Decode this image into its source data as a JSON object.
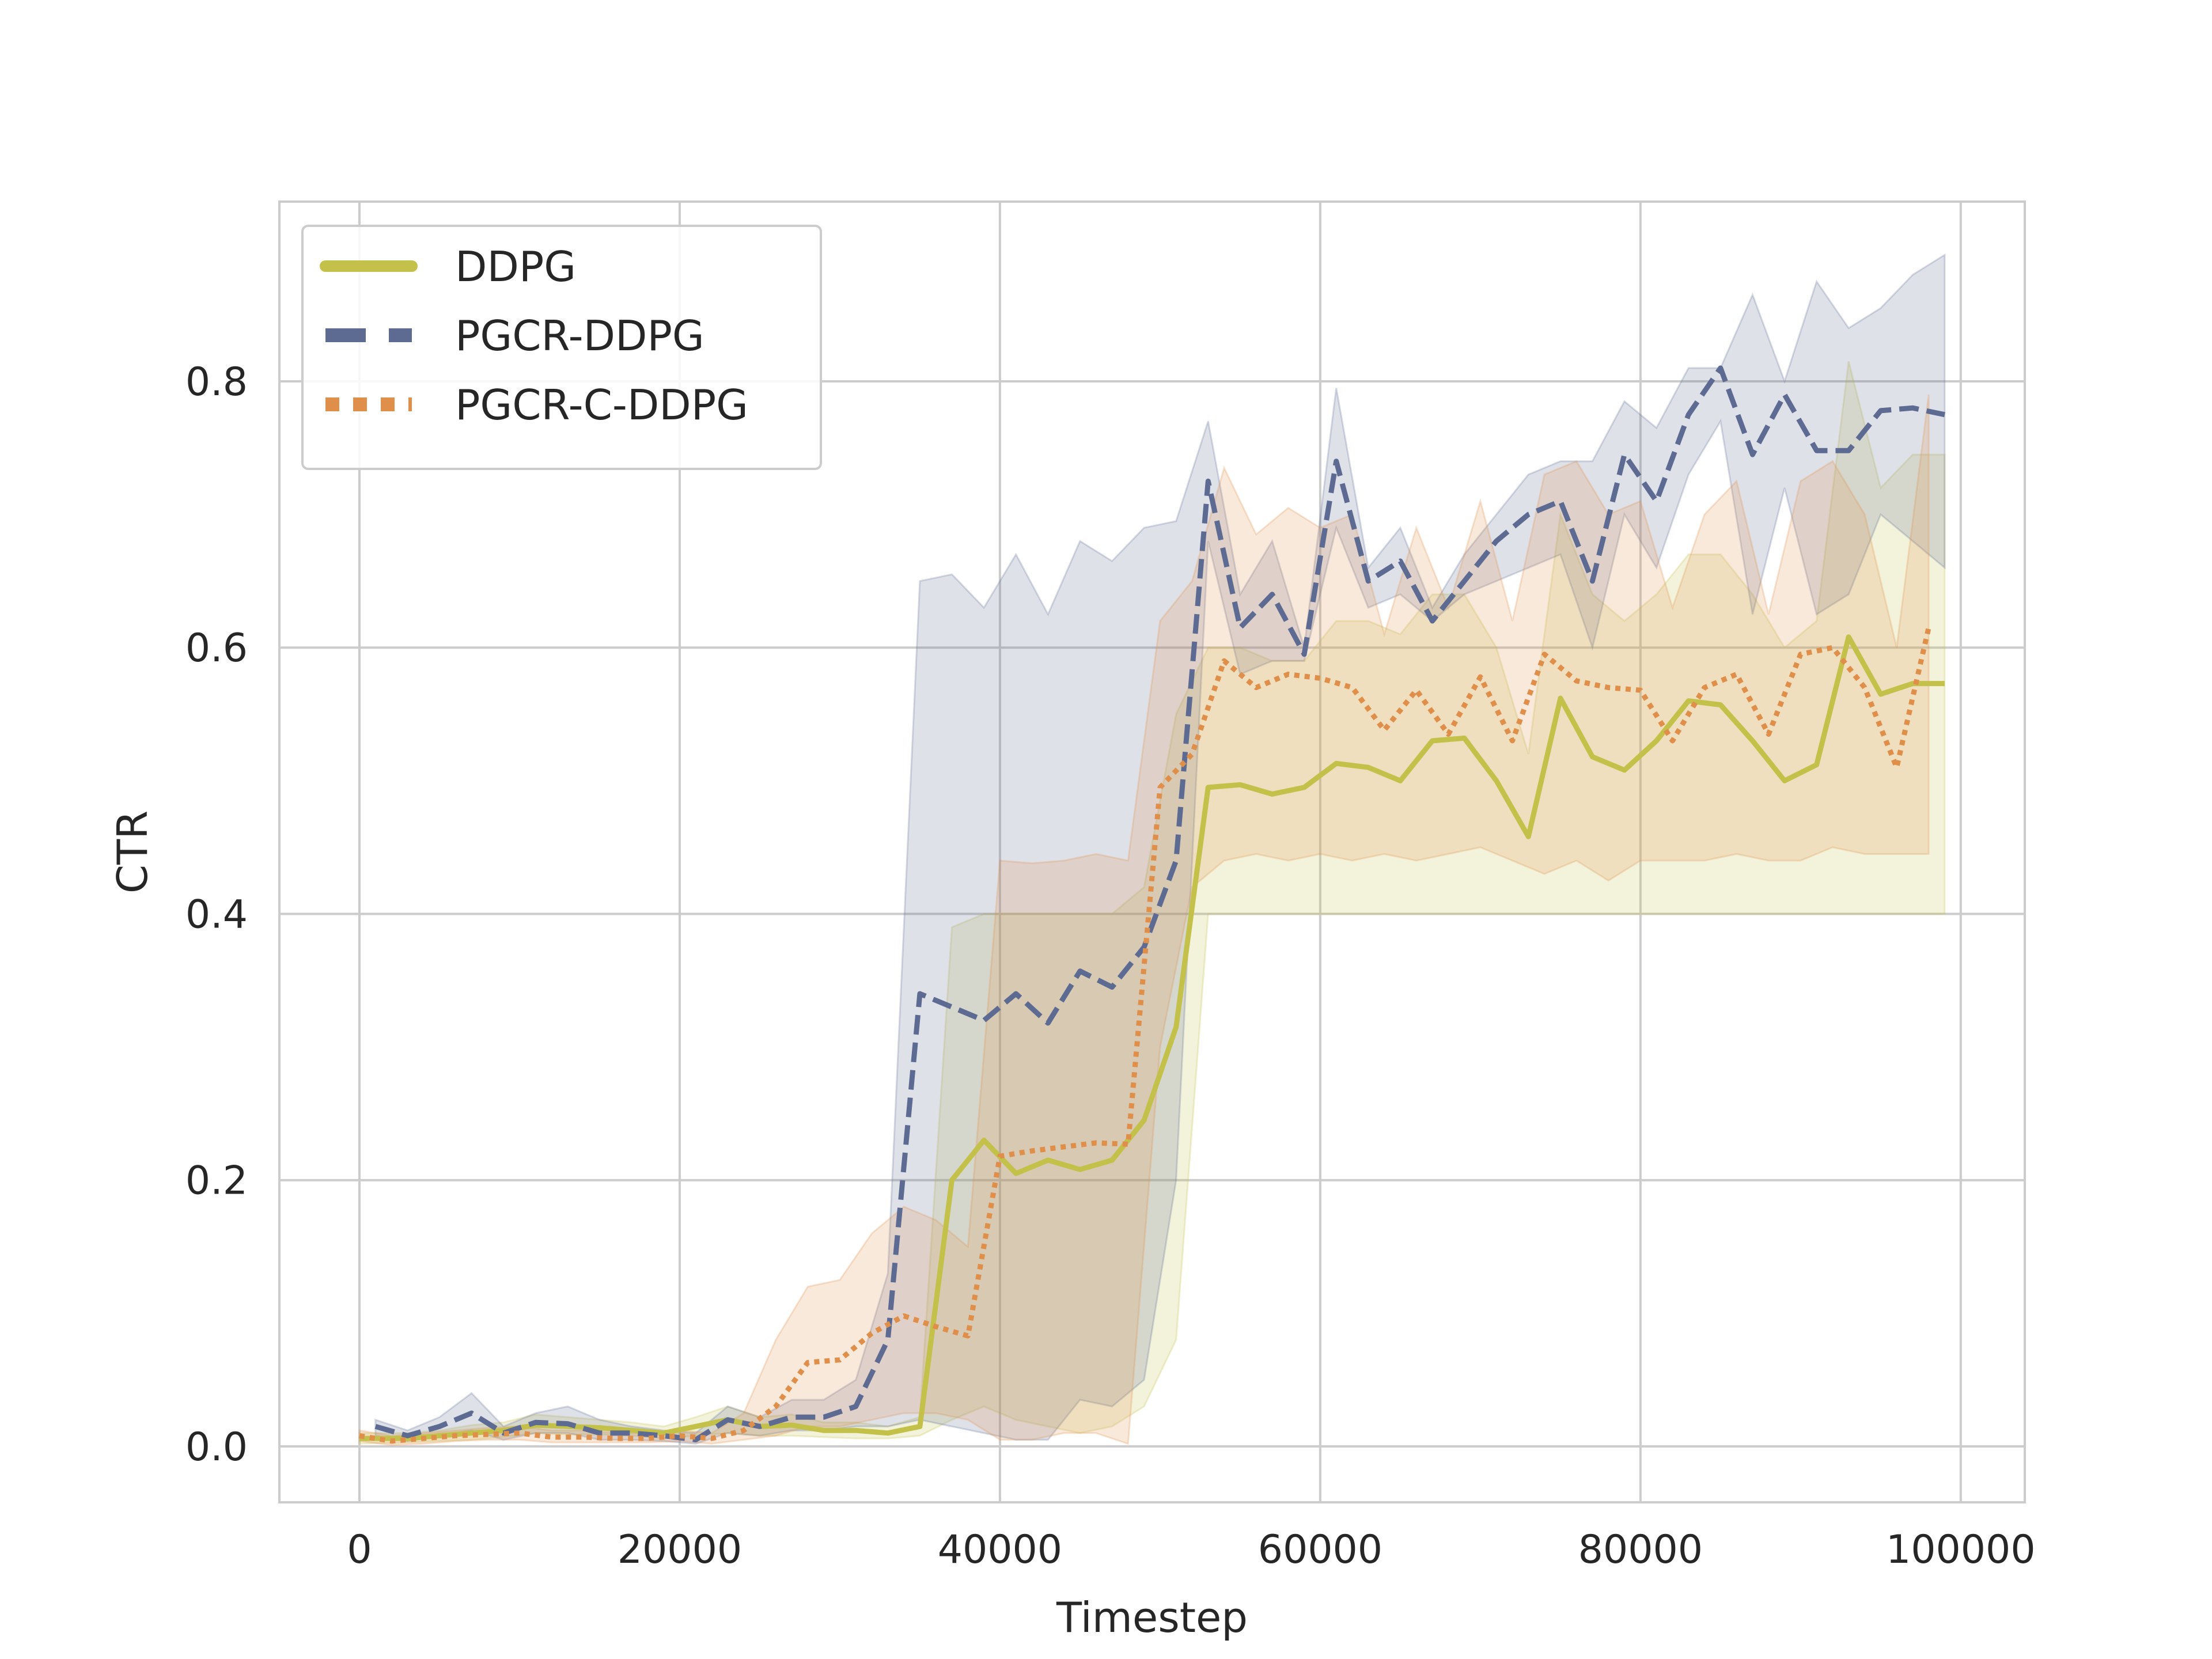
{
  "chart_data": {
    "type": "line",
    "xlabel": "Timestep",
    "ylabel": "CTR",
    "xlim": [
      -5000,
      104000
    ],
    "ylim": [
      -0.042,
      0.935
    ],
    "x_ticks": [
      0,
      20000,
      40000,
      60000,
      80000,
      100000
    ],
    "y_ticks": [
      0.0,
      0.2,
      0.4,
      0.6,
      0.8
    ],
    "x_tick_labels": [
      "0",
      "20000",
      "40000",
      "60000",
      "80000",
      "100000"
    ],
    "y_tick_labels": [
      "0.0",
      "0.2",
      "0.4",
      "0.6",
      "0.8"
    ],
    "grid": true,
    "legend_position": "top-left",
    "series": [
      {
        "name": "DDPG",
        "color": "#c4c14b",
        "dash": "solid",
        "x": [
          0,
          3000,
          5000,
          7000,
          9000,
          11000,
          13000,
          15000,
          17000,
          19000,
          21000,
          23000,
          25000,
          27000,
          29000,
          31000,
          33000,
          35000,
          37000,
          39000,
          41000,
          43000,
          45000,
          47000,
          49000,
          51000,
          53000,
          55000,
          57000,
          59000,
          61000,
          63000,
          65000,
          67000,
          69000,
          71000,
          73000,
          75000,
          77000,
          79000,
          81000,
          83000,
          85000,
          87000,
          89000,
          91000,
          93000,
          95000,
          97000,
          99000
        ],
        "y": [
          0.006,
          0.006,
          0.008,
          0.01,
          0.012,
          0.016,
          0.015,
          0.014,
          0.012,
          0.01,
          0.015,
          0.02,
          0.015,
          0.016,
          0.012,
          0.012,
          0.01,
          0.015,
          0.2,
          0.23,
          0.205,
          0.215,
          0.208,
          0.215,
          0.245,
          0.315,
          0.495,
          0.497,
          0.49,
          0.495,
          0.513,
          0.51,
          0.5,
          0.53,
          0.532,
          0.5,
          0.458,
          0.562,
          0.518,
          0.508,
          0.53,
          0.56,
          0.557,
          0.53,
          0.5,
          0.512,
          0.608,
          0.565,
          0.573,
          0.573
        ],
        "lower": [
          0.002,
          0.003,
          0.004,
          0.005,
          0.007,
          0.01,
          0.009,
          0.009,
          0.008,
          0.006,
          0.008,
          0.01,
          0.008,
          0.008,
          0.007,
          0.006,
          0.006,
          0.008,
          0.02,
          0.03,
          0.02,
          0.015,
          0.01,
          0.015,
          0.03,
          0.08,
          0.4,
          0.4,
          0.4,
          0.4,
          0.4,
          0.4,
          0.4,
          0.4,
          0.4,
          0.4,
          0.4,
          0.4,
          0.4,
          0.4,
          0.4,
          0.4,
          0.4,
          0.4,
          0.4,
          0.4,
          0.4,
          0.4,
          0.4,
          0.4
        ],
        "upper": [
          0.01,
          0.01,
          0.012,
          0.016,
          0.018,
          0.024,
          0.022,
          0.02,
          0.018,
          0.015,
          0.022,
          0.03,
          0.022,
          0.024,
          0.018,
          0.018,
          0.015,
          0.022,
          0.39,
          0.4,
          0.4,
          0.4,
          0.4,
          0.4,
          0.42,
          0.55,
          0.6,
          0.6,
          0.59,
          0.59,
          0.62,
          0.62,
          0.61,
          0.64,
          0.64,
          0.6,
          0.52,
          0.7,
          0.64,
          0.62,
          0.64,
          0.67,
          0.67,
          0.64,
          0.6,
          0.62,
          0.815,
          0.72,
          0.745,
          0.745
        ]
      },
      {
        "name": "PGCR-DDPG",
        "color": "#5d6b92",
        "dash": "dashed",
        "x": [
          1000,
          3000,
          5000,
          7000,
          9000,
          11000,
          13000,
          15000,
          17000,
          19000,
          21000,
          23000,
          25000,
          27000,
          29000,
          31000,
          33000,
          35000,
          37000,
          39000,
          41000,
          43000,
          45000,
          47000,
          49000,
          51000,
          53000,
          55000,
          57000,
          59000,
          61000,
          63000,
          65000,
          67000,
          69000,
          71000,
          73000,
          75000,
          77000,
          79000,
          81000,
          83000,
          85000,
          87000,
          89000,
          91000,
          93000,
          95000,
          97000,
          99000
        ],
        "y": [
          0.015,
          0.008,
          0.015,
          0.025,
          0.01,
          0.018,
          0.017,
          0.01,
          0.01,
          0.008,
          0.005,
          0.02,
          0.015,
          0.022,
          0.022,
          0.03,
          0.08,
          0.34,
          0.33,
          0.32,
          0.34,
          0.318,
          0.357,
          0.345,
          0.375,
          0.44,
          0.725,
          0.615,
          0.64,
          0.595,
          0.74,
          0.65,
          0.665,
          0.62,
          0.65,
          0.68,
          0.7,
          0.71,
          0.65,
          0.745,
          0.71,
          0.775,
          0.81,
          0.745,
          0.79,
          0.748,
          0.748,
          0.778,
          0.78,
          0.775
        ],
        "lower": [
          0.008,
          0.004,
          0.008,
          0.012,
          0.005,
          0.01,
          0.01,
          0.005,
          0.005,
          0.004,
          0.002,
          0.01,
          0.008,
          0.012,
          0.012,
          0.015,
          0.015,
          0.02,
          0.015,
          0.01,
          0.005,
          0.005,
          0.035,
          0.03,
          0.05,
          0.2,
          0.68,
          0.58,
          0.59,
          0.59,
          0.69,
          0.63,
          0.64,
          0.62,
          0.64,
          0.65,
          0.66,
          0.67,
          0.6,
          0.7,
          0.66,
          0.73,
          0.77,
          0.625,
          0.72,
          0.625,
          0.64,
          0.7,
          0.68,
          0.66
        ],
        "upper": [
          0.02,
          0.012,
          0.022,
          0.04,
          0.015,
          0.025,
          0.03,
          0.02,
          0.015,
          0.012,
          0.01,
          0.03,
          0.022,
          0.035,
          0.035,
          0.05,
          0.13,
          0.65,
          0.655,
          0.63,
          0.67,
          0.625,
          0.68,
          0.665,
          0.69,
          0.695,
          0.77,
          0.64,
          0.68,
          0.6,
          0.795,
          0.66,
          0.69,
          0.63,
          0.67,
          0.7,
          0.73,
          0.74,
          0.74,
          0.785,
          0.765,
          0.81,
          0.81,
          0.865,
          0.8,
          0.875,
          0.84,
          0.855,
          0.88,
          0.895
        ]
      },
      {
        "name": "PGCR-C-DDPG",
        "color": "#e08f4a",
        "dash": "dotted",
        "x": [
          0,
          2000,
          4000,
          6000,
          8000,
          10000,
          12000,
          14000,
          16000,
          18000,
          20000,
          22000,
          24000,
          26000,
          28000,
          30000,
          32000,
          34000,
          36000,
          38000,
          40000,
          42000,
          44000,
          46000,
          48000,
          50000,
          52000,
          54000,
          56000,
          58000,
          60000,
          62000,
          64000,
          66000,
          68000,
          70000,
          72000,
          74000,
          76000,
          78000,
          80000,
          82000,
          84000,
          86000,
          88000,
          90000,
          92000,
          94000,
          96000,
          98000
        ],
        "y": [
          0.008,
          0.004,
          0.006,
          0.008,
          0.009,
          0.01,
          0.007,
          0.007,
          0.006,
          0.006,
          0.008,
          0.006,
          0.012,
          0.03,
          0.063,
          0.065,
          0.085,
          0.098,
          0.09,
          0.083,
          0.218,
          0.222,
          0.225,
          0.228,
          0.227,
          0.495,
          0.52,
          0.59,
          0.57,
          0.58,
          0.577,
          0.57,
          0.538,
          0.568,
          0.535,
          0.578,
          0.53,
          0.595,
          0.575,
          0.57,
          0.568,
          0.53,
          0.57,
          0.58,
          0.535,
          0.595,
          0.6,
          0.57,
          0.51,
          0.615
        ],
        "lower": [
          0.004,
          0.001,
          0.002,
          0.004,
          0.005,
          0.005,
          0.003,
          0.003,
          0.003,
          0.003,
          0.004,
          0.002,
          0.005,
          0.008,
          0.015,
          0.015,
          0.02,
          0.025,
          0.025,
          0.02,
          0.005,
          0.005,
          0.01,
          0.01,
          0.002,
          0.3,
          0.42,
          0.44,
          0.445,
          0.44,
          0.445,
          0.44,
          0.445,
          0.44,
          0.445,
          0.45,
          0.44,
          0.43,
          0.44,
          0.425,
          0.44,
          0.44,
          0.44,
          0.445,
          0.44,
          0.44,
          0.45,
          0.445,
          0.445,
          0.445
        ],
        "upper": [
          0.012,
          0.008,
          0.01,
          0.012,
          0.014,
          0.015,
          0.012,
          0.012,
          0.01,
          0.01,
          0.012,
          0.01,
          0.025,
          0.08,
          0.12,
          0.125,
          0.16,
          0.18,
          0.17,
          0.15,
          0.44,
          0.438,
          0.44,
          0.445,
          0.44,
          0.62,
          0.65,
          0.735,
          0.685,
          0.705,
          0.69,
          0.7,
          0.61,
          0.69,
          0.63,
          0.71,
          0.62,
          0.73,
          0.74,
          0.7,
          0.71,
          0.63,
          0.7,
          0.725,
          0.625,
          0.725,
          0.74,
          0.7,
          0.6,
          0.79
        ]
      }
    ]
  }
}
